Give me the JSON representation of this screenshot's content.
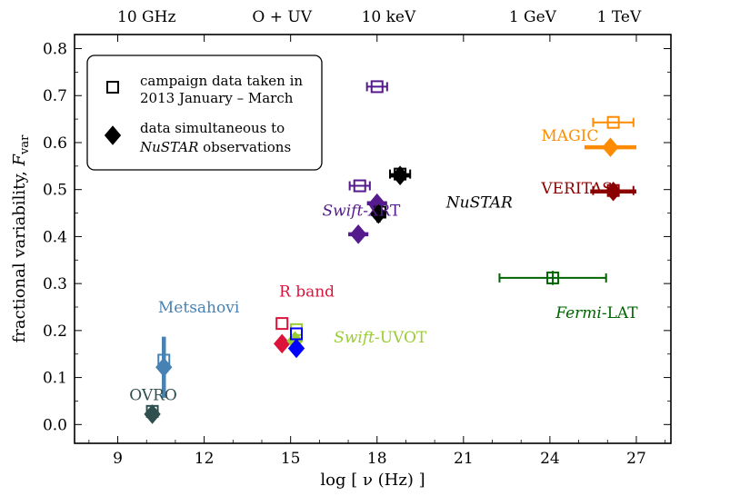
{
  "chart_data": {
    "type": "scatter",
    "xlabel": "log [ ν (Hz) ]",
    "ylabel": "fractional variability, F_var",
    "xlim": [
      7.5,
      28.2
    ],
    "ylim": [
      -0.04,
      0.83
    ],
    "x_ticks": [
      9,
      12,
      15,
      18,
      21,
      24,
      27
    ],
    "y_ticks": [
      0.0,
      0.1,
      0.2,
      0.3,
      0.4,
      0.5,
      0.6,
      0.7,
      0.8
    ],
    "x_tick_labels": [
      "9",
      "12",
      "15",
      "18",
      "21",
      "24",
      "27"
    ],
    "y_tick_labels": [
      "0.0",
      "0.1",
      "0.2",
      "0.3",
      "0.4",
      "0.5",
      "0.6",
      "0.7",
      "0.8"
    ],
    "top_axis_labels": [
      {
        "x": 10.0,
        "label": "10 GHz"
      },
      {
        "x": 14.7,
        "label": "O + UV"
      },
      {
        "x": 18.4,
        "label": "10 keV"
      },
      {
        "x": 23.4,
        "label": "1 GeV"
      },
      {
        "x": 26.4,
        "label": "1 TeV"
      }
    ],
    "legend": {
      "placement": "top-left",
      "entries": [
        {
          "marker": "open-square",
          "line1": "campaign data taken in",
          "line2": "2013 January – March"
        },
        {
          "marker": "filled-diamond",
          "line1": "data simultaneous to",
          "line2": "NuSTAR observations"
        }
      ]
    },
    "series": [
      {
        "name": "OVRO",
        "color": "#2f4f4f",
        "label_x": 9.4,
        "label_y": 0.052,
        "points": [
          {
            "marker": "open-square",
            "x": 10.2,
            "y": 0.028,
            "xerr": 0.0,
            "yerr": 0.0
          },
          {
            "marker": "filled-diamond",
            "x": 10.2,
            "y": 0.022,
            "xerr": 0.0,
            "yerr": 0.0
          }
        ]
      },
      {
        "name": "Metsahovi",
        "color": "#4682b4",
        "label_x": 10.4,
        "label_y": 0.238,
        "points": [
          {
            "marker": "open-square",
            "x": 10.6,
            "y": 0.137,
            "xerr": 0.0,
            "yerr": 0.025
          },
          {
            "marker": "filled-diamond",
            "x": 10.6,
            "y": 0.122,
            "xerr": 0.2,
            "yerr": 0.065
          }
        ]
      },
      {
        "name": "R band",
        "color": "#dc143c",
        "label_x": 14.6,
        "label_y": 0.272,
        "points": [
          {
            "marker": "open-square",
            "x": 14.7,
            "y": 0.215,
            "xerr": 0.0,
            "yerr": 0.0
          },
          {
            "marker": "filled-diamond",
            "x": 14.7,
            "y": 0.172,
            "xerr": 0.0,
            "yerr": 0.0
          }
        ]
      },
      {
        "name": "Swift-UVOT",
        "color": "#9acd32",
        "label_x": 16.5,
        "label_y": 0.175,
        "points": [
          {
            "marker": "open-square",
            "x": 15.2,
            "y": 0.202,
            "xerr": 0.0,
            "yerr": 0.0
          },
          {
            "marker": "filled-diamond",
            "x": 15.15,
            "y": 0.178,
            "xerr": 0.0,
            "yerr": 0.0
          }
        ]
      },
      {
        "name": "UV (blue)",
        "color": "#0000ff",
        "label_x": null,
        "label_y": null,
        "points": [
          {
            "marker": "open-square",
            "x": 15.2,
            "y": 0.193,
            "xerr": 0.0,
            "yerr": 0.0
          },
          {
            "marker": "filled-diamond",
            "x": 15.2,
            "y": 0.162,
            "xerr": 0.0,
            "yerr": 0.0
          }
        ]
      },
      {
        "name": "Swift-XRT",
        "color": "#551a8b",
        "label_x": 16.1,
        "label_y": 0.444,
        "points": [
          {
            "marker": "open-square",
            "x": 18.0,
            "y": 0.719,
            "xerr": 0.35,
            "yerr": 0.0
          },
          {
            "marker": "open-square",
            "x": 17.4,
            "y": 0.508,
            "xerr": 0.35,
            "yerr": 0.0
          },
          {
            "marker": "filled-diamond",
            "x": 18.0,
            "y": 0.471,
            "xerr": 0.35,
            "yerr": 0.015
          },
          {
            "marker": "filled-diamond",
            "x": 17.35,
            "y": 0.405,
            "xerr": 0.35,
            "yerr": 0.0
          }
        ]
      },
      {
        "name": "NuSTAR",
        "color": "#000000",
        "label_x": 20.4,
        "label_y": 0.462,
        "points": [
          {
            "marker": "open-square",
            "x": 18.8,
            "y": 0.533,
            "xerr": 0.35,
            "yerr": 0.0
          },
          {
            "marker": "filled-diamond",
            "x": 18.8,
            "y": 0.53,
            "xerr": 0.35,
            "yerr": 0.016
          },
          {
            "marker": "open-square",
            "x": 18.1,
            "y": 0.452,
            "xerr": 0.0,
            "yerr": 0.0
          },
          {
            "marker": "filled-diamond",
            "x": 18.05,
            "y": 0.448,
            "xerr": 0.25,
            "yerr": 0.018
          }
        ]
      },
      {
        "name": "MAGIC",
        "color": "#ff8c00",
        "label_x": 23.7,
        "label_y": 0.604,
        "points": [
          {
            "marker": "open-square",
            "x": 26.2,
            "y": 0.643,
            "xerr": 0.7,
            "yerr": 0.0
          },
          {
            "marker": "filled-diamond",
            "x": 26.1,
            "y": 0.59,
            "xerr": 0.9,
            "yerr": 0.013
          }
        ]
      },
      {
        "name": "VERITAS",
        "color": "#8b0000",
        "label_x": 23.7,
        "label_y": 0.492,
        "points": [
          {
            "marker": "open-square",
            "x": 26.2,
            "y": 0.498,
            "xerr": 0.7,
            "yerr": 0.0
          },
          {
            "marker": "filled-diamond",
            "x": 26.2,
            "y": 0.496,
            "xerr": 0.8,
            "yerr": 0.0
          }
        ]
      },
      {
        "name": "Fermi-LAT",
        "color": "#006400",
        "label_x": 24.2,
        "label_y": 0.227,
        "points": [
          {
            "marker": "open-square",
            "x": 24.1,
            "y": 0.312,
            "xerr": 1.85,
            "yerr": 0.015
          }
        ]
      }
    ]
  }
}
